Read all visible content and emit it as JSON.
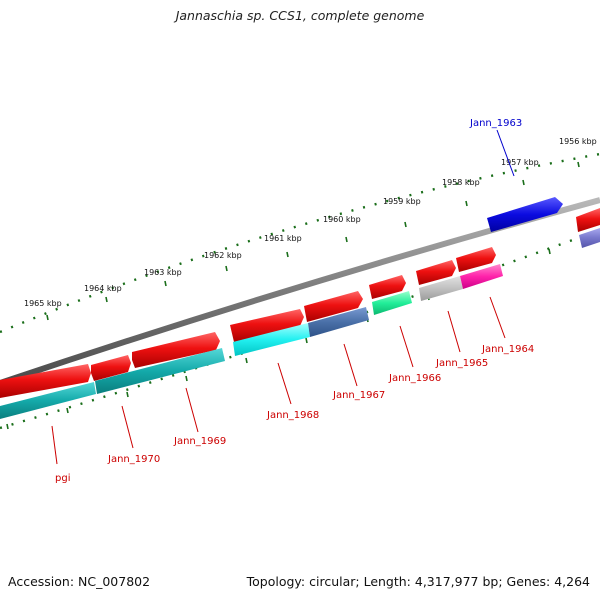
{
  "title": "Jannaschia sp. CCS1, complete genome",
  "footer": {
    "accession": "Accession: NC_007802",
    "topology": "Topology: circular; Length: 4,317,977 bp; Genes: 4,264"
  },
  "colors": {
    "backbone": "#7a7a7a",
    "tick": "#1a6e1a",
    "cds": "#ee1111",
    "label_default": "#cc0000",
    "label_highlight": "#0000cc"
  },
  "scale_labels": [
    "1965 kbp",
    "1964 kbp",
    "1963 kbp",
    "1962 kbp",
    "1961 kbp",
    "1960 kbp",
    "1959 kbp",
    "1958 kbp",
    "1957 kbp",
    "1956 kbp"
  ],
  "genes": [
    {
      "name": "pgi"
    },
    {
      "name": "Jann_1970"
    },
    {
      "name": "Jann_1969"
    },
    {
      "name": "Jann_1968"
    },
    {
      "name": "Jann_1967"
    },
    {
      "name": "Jann_1966"
    },
    {
      "name": "Jann_1965"
    },
    {
      "name": "Jann_1964"
    },
    {
      "name": "Jann_1963"
    }
  ]
}
